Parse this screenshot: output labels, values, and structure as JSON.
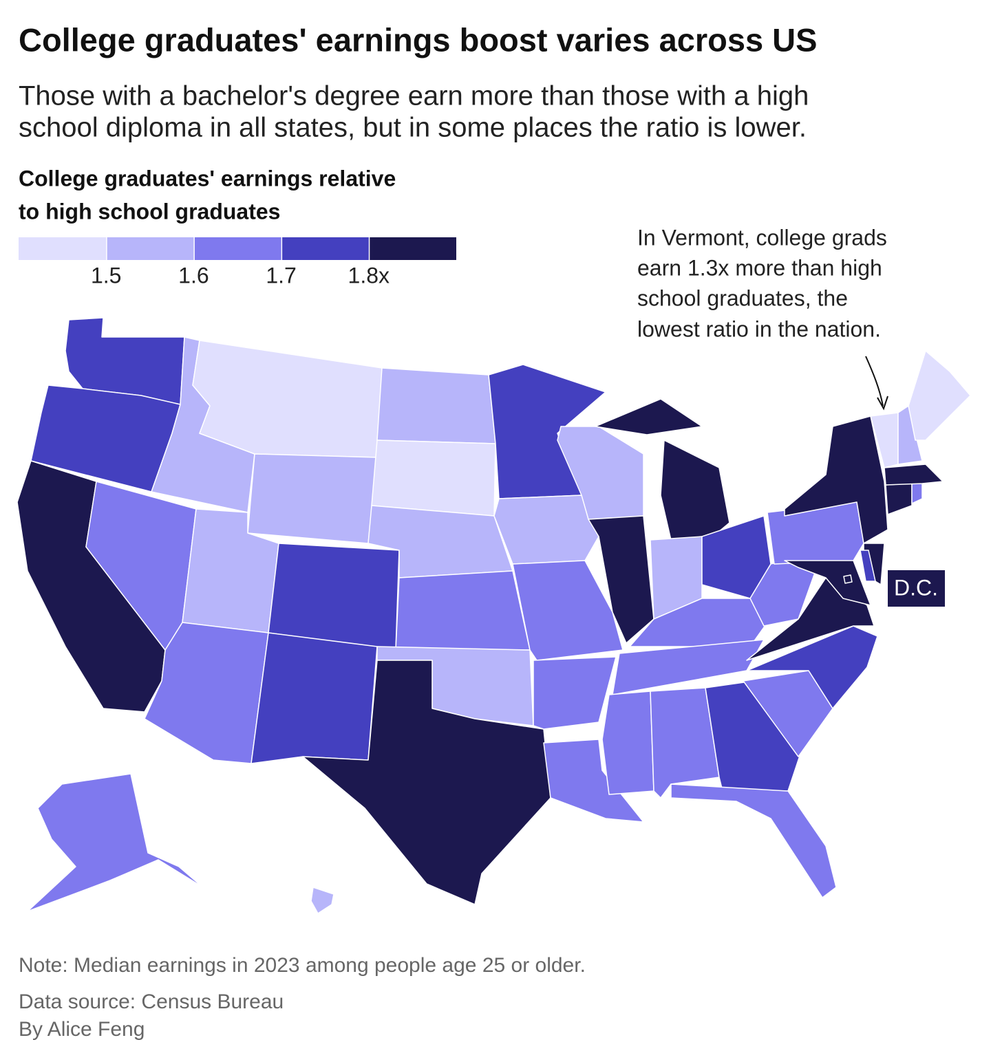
{
  "title": "College graduates' earnings boost varies across US",
  "subtitle": [
    "Those with a bachelor's degree earn more than those with a high",
    "school diploma in all states, but in some places the ratio is lower."
  ],
  "legend": {
    "title": [
      "College graduates' earnings relative",
      "to high school graduates"
    ],
    "colors": [
      "#e0dffe",
      "#b7b5fa",
      "#7f79ee",
      "#4440bf",
      "#1c184f"
    ],
    "breaks": [
      1.5,
      1.6,
      1.7,
      {
        "value": 1.8,
        "label": "1.8x"
      }
    ]
  },
  "annotation": [
    "In Vermont, college grads",
    "earn 1.3x more than high",
    "school graduates, the",
    "lowest ratio in the nation."
  ],
  "dc_label": "D.C.",
  "map": {
    "region_values": [
      1.75,
      1.75,
      1.85,
      1.65,
      1.55,
      1.45,
      1.55,
      1.55,
      1.75,
      1.65,
      1.75,
      1.55,
      1.45,
      1.55,
      1.65,
      1.55,
      1.85,
      1.75,
      1.55,
      1.65,
      1.65,
      1.65,
      1.55,
      1.85,
      1.85,
      1.55,
      1.75,
      1.65,
      1.65,
      1.65,
      1.65,
      1.75,
      1.65,
      1.65,
      1.75,
      1.85,
      1.65,
      1.65,
      1.85,
      1.85,
      1.85,
      1.75,
      1.85,
      1.65,
      1.85,
      1.3,
      1.55,
      1.45,
      1.65,
      1.55,
      1.85
    ]
  },
  "note": "Note: Median earnings in 2023 among people age 25 or older.",
  "source": "Data source: Census Bureau",
  "byline": "By Alice Feng"
}
